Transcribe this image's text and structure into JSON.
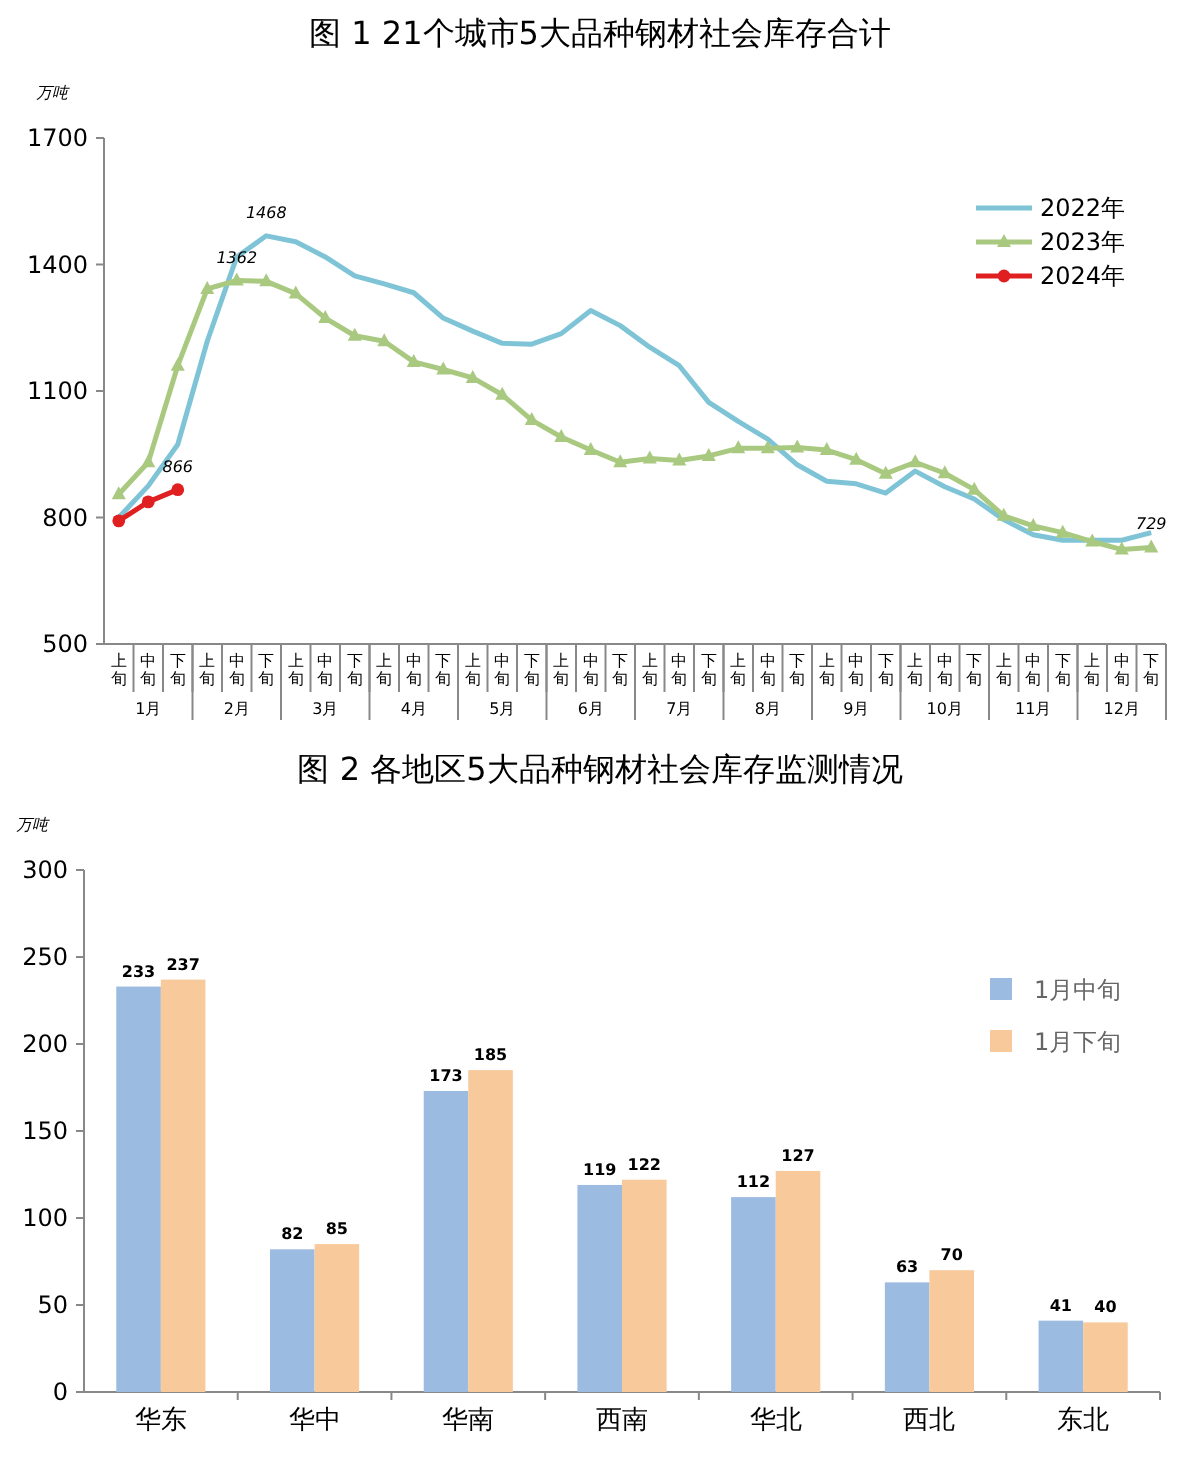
{
  "chart_data": [
    {
      "type": "line",
      "title": "图 1 21个城市5大品种钢材社会库存合计",
      "ylabel": "万吨",
      "categories": [
        "上旬",
        "中旬",
        "下旬",
        "上旬",
        "中旬",
        "下旬",
        "上旬",
        "中旬",
        "下旬",
        "上旬",
        "中旬",
        "下旬",
        "上旬",
        "中旬",
        "下旬",
        "上旬",
        "中旬",
        "下旬",
        "上旬",
        "中旬",
        "下旬",
        "上旬",
        "中旬",
        "下旬",
        "上旬",
        "中旬",
        "下旬",
        "上旬",
        "中旬",
        "下旬",
        "上旬",
        "中旬",
        "下旬",
        "上旬",
        "中旬",
        "下旬"
      ],
      "annotations": [
        "1月",
        "2月",
        "3月",
        "4月",
        "5月",
        "6月",
        "7月",
        "8月",
        "9月",
        "10月",
        "11月",
        "12月"
      ],
      "ylim": [
        500,
        1700
      ],
      "yticks": [
        500,
        800,
        1100,
        1400,
        1700
      ],
      "grid": false,
      "legend": "top right",
      "series": [
        {
          "name": "2022年",
          "color": "#7fc4d6",
          "marker": "none",
          "values": [
            800,
            875,
            973,
            1218,
            1418,
            1468,
            1454,
            1418,
            1373,
            1354,
            1333,
            1273,
            1242,
            1213,
            1211,
            1236,
            1291,
            1255,
            1204,
            1160,
            1073,
            1028,
            986,
            925,
            886,
            880,
            858,
            910,
            873,
            844,
            795,
            759,
            746,
            746,
            746,
            764
          ],
          "value_labels": [
            null,
            null,
            null,
            null,
            null,
            "1468",
            null,
            null,
            null,
            null,
            null,
            null,
            null,
            null,
            null,
            null,
            null,
            null,
            null,
            null,
            null,
            null,
            null,
            null,
            null,
            null,
            null,
            null,
            null,
            null,
            null,
            null,
            null,
            null,
            null,
            null
          ]
        },
        {
          "name": "2023年",
          "color": "#a8c97f",
          "marker": "triangle",
          "values": [
            855,
            931,
            1160,
            1342,
            1362,
            1360,
            1331,
            1273,
            1231,
            1218,
            1169,
            1151,
            1131,
            1091,
            1031,
            991,
            960,
            931,
            940,
            935,
            946,
            964,
            964,
            966,
            960,
            937,
            904,
            931,
            905,
            866,
            804,
            780,
            764,
            743,
            724,
            729
          ],
          "value_labels": [
            null,
            null,
            null,
            null,
            "1362",
            null,
            null,
            null,
            null,
            null,
            null,
            null,
            null,
            null,
            null,
            null,
            null,
            null,
            null,
            null,
            null,
            null,
            null,
            null,
            null,
            null,
            null,
            null,
            null,
            null,
            null,
            null,
            null,
            null,
            null,
            "729"
          ]
        },
        {
          "name": "2024年",
          "color": "#e02020",
          "marker": "circle",
          "values": [
            792,
            837,
            866,
            null,
            null,
            null,
            null,
            null,
            null,
            null,
            null,
            null,
            null,
            null,
            null,
            null,
            null,
            null,
            null,
            null,
            null,
            null,
            null,
            null,
            null,
            null,
            null,
            null,
            null,
            null,
            null,
            null,
            null,
            null,
            null,
            null
          ],
          "value_labels": [
            null,
            null,
            "866",
            null,
            null,
            null,
            null,
            null,
            null,
            null,
            null,
            null,
            null,
            null,
            null,
            null,
            null,
            null,
            null,
            null,
            null,
            null,
            null,
            null,
            null,
            null,
            null,
            null,
            null,
            null,
            null,
            null,
            null,
            null,
            null,
            null
          ]
        }
      ]
    },
    {
      "type": "bar",
      "title": "图 2 各地区5大品种钢材社会库存监测情况",
      "ylabel": "万吨",
      "categories": [
        "华东",
        "华中",
        "华南",
        "西南",
        "华北",
        "西北",
        "东北"
      ],
      "ylim": [
        0,
        300
      ],
      "yticks": [
        0,
        50,
        100,
        150,
        200,
        250,
        300
      ],
      "grid": false,
      "legend": "right",
      "data_labels": true,
      "series": [
        {
          "name": "1月中旬",
          "color": "#9bbbe0",
          "values": [
            233,
            82,
            173,
            119,
            112,
            63,
            41
          ]
        },
        {
          "name": "1月下旬",
          "color": "#f8c99a",
          "values": [
            237,
            85,
            185,
            122,
            127,
            70,
            40
          ]
        }
      ]
    }
  ]
}
